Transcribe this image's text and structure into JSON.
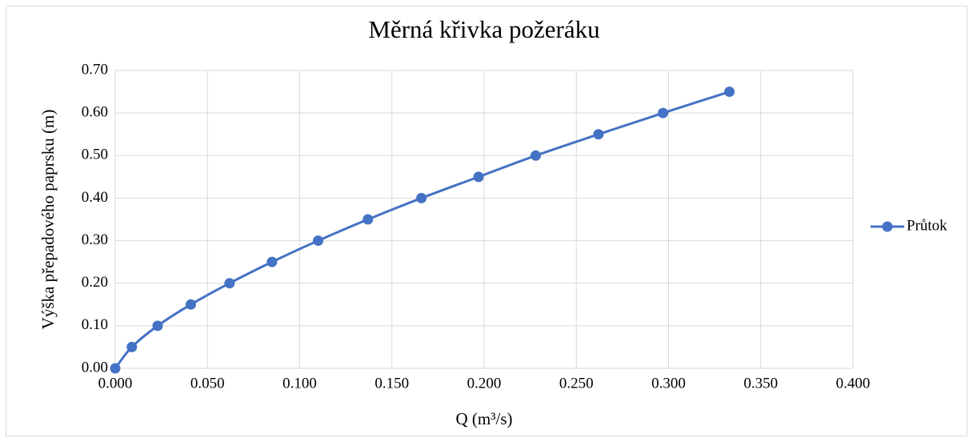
{
  "chart_data": {
    "type": "scatter_line",
    "title": "Měrná křivka požeráku",
    "x_label": "Q (m³/s)",
    "y_label": "Výška přepadového paprsku (m)",
    "series": [
      {
        "name": "Průtok",
        "color": "#4472c4",
        "x": [
          0.0,
          0.009,
          0.023,
          0.041,
          0.062,
          0.085,
          0.11,
          0.137,
          0.166,
          0.197,
          0.228,
          0.262,
          0.297,
          0.333
        ],
        "values": [
          0,
          0.05,
          0.1,
          0.15,
          0.2,
          0.25,
          0.3,
          0.35,
          0.4,
          0.45,
          0.5,
          0.55,
          0.6,
          0.65
        ]
      }
    ],
    "xlim": [
      0,
      0.4
    ],
    "xticks": [
      {
        "value": 0,
        "label": "0.000"
      },
      {
        "value": 0.05,
        "label": "0.050"
      },
      {
        "value": 0.1,
        "label": "0.100"
      },
      {
        "value": 0.15,
        "label": "0.150"
      },
      {
        "value": 0.2,
        "label": "0.200"
      },
      {
        "value": 0.25,
        "label": "0.250"
      },
      {
        "value": 0.3,
        "label": "0.300"
      },
      {
        "value": 0.35,
        "label": "0.350"
      },
      {
        "value": 0.4,
        "label": "0.400"
      }
    ],
    "ylim": [
      0,
      0.7
    ],
    "yticks": [
      {
        "value": 0,
        "label": "0.00"
      },
      {
        "value": 0.1,
        "label": "0.10"
      },
      {
        "value": 0.2,
        "label": "0.20"
      },
      {
        "value": 0.3,
        "label": "0.30"
      },
      {
        "value": 0.4,
        "label": "0.40"
      },
      {
        "value": 0.5,
        "label": "0.50"
      },
      {
        "value": 0.6,
        "label": "0.60"
      },
      {
        "value": 0.7,
        "label": "0.70"
      }
    ],
    "grid": true,
    "legend": "right"
  }
}
